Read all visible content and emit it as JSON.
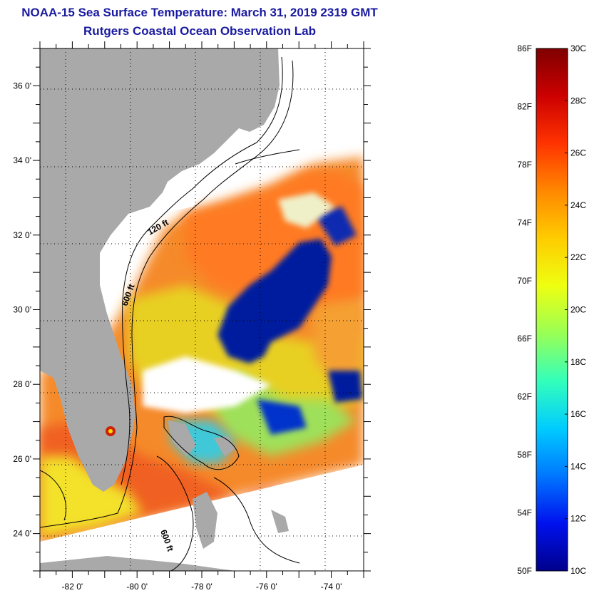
{
  "title": "NOAA-15 Sea Surface Temperature:  March 31, 2019 2319 GMT",
  "subtitle": "Rutgers Coastal Ocean Observation Lab",
  "map": {
    "lon_range": [
      -83,
      -73
    ],
    "lat_range": [
      23,
      37
    ],
    "lat_labels": [
      "36 0'",
      "34 0'",
      "32 0'",
      "30 0'",
      "28 0'",
      "26 0'",
      "24 0'"
    ],
    "lat_values": [
      36,
      34,
      32,
      30,
      28,
      26,
      24
    ],
    "lon_labels": [
      "-82 0'",
      "-80 0'",
      "-78 0'",
      "-76 0'",
      "-74 0'"
    ],
    "lon_values": [
      -82,
      -80,
      -78,
      -76,
      -74
    ],
    "contour_labels": [
      "120 ft",
      "600 ft",
      "600 ft"
    ],
    "colors": {
      "land": "#a9a9a9",
      "no_data": "#ffffff",
      "coast_line": "#000000"
    }
  },
  "colorbar": {
    "f_labels": [
      "86F",
      "82F",
      "78F",
      "74F",
      "70F",
      "66F",
      "62F",
      "58F",
      "54F",
      "50F"
    ],
    "c_labels": [
      "30C",
      "28C",
      "26C",
      "24C",
      "22C",
      "20C",
      "18C",
      "16C",
      "14C",
      "12C",
      "10C"
    ],
    "range_c": [
      10,
      30
    ],
    "colormap": [
      "#7f0000",
      "#cc0000",
      "#ff3300",
      "#ff8800",
      "#ffcc00",
      "#eeff11",
      "#99ff55",
      "#33ffbb",
      "#00ccff",
      "#0077ff",
      "#0011ee",
      "#00008b"
    ]
  }
}
